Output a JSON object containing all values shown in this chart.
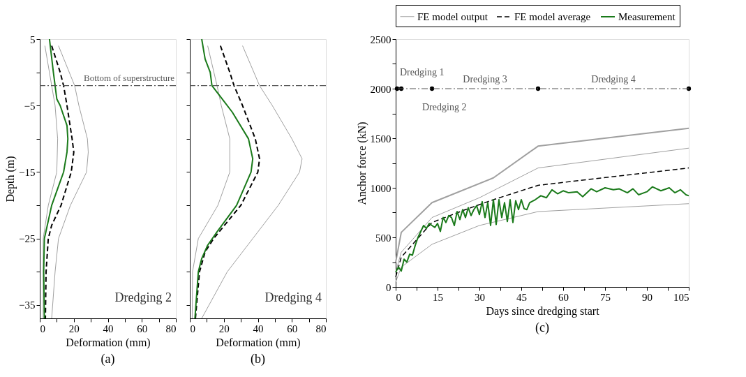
{
  "chart_data": [
    {
      "type": "line",
      "title": "(a)",
      "xlabel": "Deformation (mm)",
      "ylabel": "Depth (m)",
      "xlim": [
        0,
        80
      ],
      "ylim": [
        -37,
        5
      ],
      "xticks": [
        0,
        {
          "value": 10,
          "label": null
        },
        20,
        {
          "value": 30,
          "label": null
        },
        40,
        {
          "value": 50,
          "label": null
        },
        60,
        {
          "value": 70,
          "label": null
        },
        80
      ],
      "yticks": [
        -35,
        {
          "value": -30,
          "label": null
        },
        -25,
        {
          "value": -20,
          "label": null
        },
        -15,
        {
          "value": -10,
          "label": null
        },
        -5,
        {
          "value": 0,
          "label": null
        },
        5
      ],
      "grid": false,
      "legend": false,
      "marker": "none",
      "series": [
        {
          "color": "#a0a0a0",
          "x": [
            3,
            7,
            9,
            10.5,
            10,
            5,
            2,
            2
          ],
          "values": [
            4,
            -2,
            -5,
            -10,
            -15,
            -20,
            -25,
            -37
          ]
        },
        {
          "color": "#a0a0a0",
          "x": [
            11,
            20.5,
            23,
            28,
            28.5,
            27.5,
            18,
            11,
            9,
            7
          ],
          "values": [
            4,
            -2,
            -5,
            -10,
            -12,
            -15,
            -20,
            -25,
            -30,
            -37
          ]
        },
        {
          "color": "#000000",
          "line_style": "dashed",
          "x": [
            7,
            12,
            14,
            16,
            19,
            20,
            18.5,
            12.5,
            7,
            5,
            3.7,
            3.3
          ],
          "values": [
            4,
            0,
            -2,
            -5,
            -10,
            -12,
            -15,
            -20,
            -23,
            -25,
            -30,
            -37
          ]
        },
        {
          "color": "#1a7a1a",
          "x": [
            5.7,
            8,
            9,
            10,
            12,
            16,
            16.5,
            16,
            14,
            7,
            2.7,
            2.3,
            2.7
          ],
          "values": [
            5,
            0,
            -2,
            -4,
            -5,
            -8,
            -10,
            -12,
            -15,
            -20,
            -25,
            -30,
            -37
          ]
        }
      ],
      "ref_lines": [
        {
          "axis": "y",
          "value": -2,
          "label": "Bottom of superstructure",
          "color": "#555555",
          "line_style": "dashdot"
        }
      ],
      "annotations": [
        "Dredging 2"
      ]
    },
    {
      "type": "line",
      "title": "(b)",
      "xlabel": "Deformation (mm)",
      "xlim": [
        0,
        80
      ],
      "ylim": [
        -37,
        5
      ],
      "tick_labels": "x",
      "xticks": [
        0,
        {
          "value": 10,
          "label": null
        },
        20,
        {
          "value": 30,
          "label": null
        },
        40,
        {
          "value": 50,
          "label": null
        },
        60,
        {
          "value": 70,
          "label": null
        },
        80
      ],
      "yticks": [
        -35,
        {
          "value": -30,
          "label": null
        },
        -25,
        {
          "value": -20,
          "label": null
        },
        -15,
        {
          "value": -10,
          "label": null
        },
        -5,
        {
          "value": 0,
          "label": null
        },
        5
      ],
      "grid": false,
      "legend": false,
      "marker": "none",
      "series": [
        {
          "color": "#a0a0a0",
          "x": [
            10.5,
            16,
            18.5,
            23.5,
            23.5,
            16.5,
            5,
            1.6,
            1.4
          ],
          "values": [
            4,
            -2,
            -5,
            -10,
            -15,
            -20,
            -25,
            -30,
            -37
          ]
        },
        {
          "color": "#a0a0a0",
          "x": [
            31,
            41,
            48.5,
            60,
            66,
            64.5,
            52,
            37,
            22,
            7
          ],
          "values": [
            4,
            -2,
            -5,
            -10,
            -13,
            -15,
            -20,
            -25,
            -30,
            -37
          ]
        },
        {
          "color": "#000000",
          "line_style": "dashed",
          "x": [
            18,
            23.5,
            26,
            31,
            38.5,
            41,
            40,
            30,
            14,
            9,
            5.7,
            3.3
          ],
          "values": [
            4,
            0,
            -2,
            -5,
            -10,
            -13,
            -15,
            -20,
            -25,
            -27,
            -30,
            -37
          ]
        },
        {
          "color": "#1a7a1a",
          "x": [
            7,
            9,
            12,
            13,
            19,
            25,
            34.5,
            37,
            36,
            27.5,
            16,
            10.5,
            7,
            5,
            3
          ],
          "values": [
            5,
            2,
            0,
            -2,
            -4,
            -6,
            -10,
            -13,
            -15,
            -20,
            -24,
            -26,
            -28,
            -30,
            -37
          ]
        }
      ],
      "ref_lines": [
        {
          "axis": "y",
          "value": -2,
          "label": null,
          "color": "#555555",
          "line_style": "dashdot"
        }
      ],
      "annotations": [
        "Dredging 4"
      ]
    },
    {
      "type": "line",
      "title": "(c)",
      "xlabel": "Days since dredging start",
      "ylabel": "Anchor force (kN)",
      "xlim": [
        0,
        105
      ],
      "ylim": [
        0,
        2500
      ],
      "xticks": [
        0,
        {
          "value": 7.5,
          "label": null
        },
        15,
        {
          "value": 22.5,
          "label": null
        },
        30,
        {
          "value": 37.5,
          "label": null
        },
        45,
        {
          "value": 52.5,
          "label": null
        },
        60,
        {
          "value": 67.5,
          "label": null
        },
        75,
        {
          "value": 82.5,
          "label": null
        },
        90,
        {
          "value": 97.5,
          "label": null
        },
        105
      ],
      "yticks": [
        0,
        {
          "value": 250,
          "label": null
        },
        500,
        {
          "value": 750,
          "label": null
        },
        1000,
        {
          "value": 1250,
          "label": null
        },
        1500,
        {
          "value": 1750,
          "label": null
        },
        2000,
        {
          "value": 2250,
          "label": null
        },
        2500
      ],
      "grid": false,
      "legend": "top",
      "marker": "none",
      "series": [
        {
          "name": "FE model output",
          "color": "#a0a0a0",
          "x": [
            0,
            2,
            13,
            30,
            51,
            105
          ],
          "values": [
            50,
            200,
            430,
            620,
            760,
            840
          ]
        },
        {
          "color": "#a0a0a0",
          "x": [
            0,
            2,
            13,
            30,
            51,
            105
          ],
          "values": [
            150,
            350,
            700,
            900,
            1200,
            1400
          ]
        },
        {
          "color": "#a0a0a0",
          "x": [
            0,
            2,
            13,
            35,
            51,
            105
          ],
          "values": [
            250,
            550,
            850,
            1100,
            1420,
            1600
          ]
        },
        {
          "name": "FE model average",
          "color": "#000000",
          "line_style": "dashed",
          "x": [
            0,
            2,
            13,
            25,
            35,
            51,
            105
          ],
          "values": [
            100,
            300,
            650,
            780,
            880,
            1025,
            1200
          ]
        },
        {
          "name": "Measurement",
          "color": "#1a7a1a",
          "x": [
            0,
            1,
            2,
            3,
            4,
            5,
            6,
            7,
            8,
            9,
            10,
            11,
            12,
            13,
            14,
            15,
            16,
            17,
            18,
            19,
            20,
            21,
            22,
            23,
            24,
            25,
            26,
            27,
            28,
            29,
            30,
            31,
            32,
            33,
            34,
            35,
            36,
            37,
            38,
            39,
            40,
            41,
            42,
            43,
            44,
            45,
            46,
            47,
            48,
            50,
            52,
            54,
            56,
            58,
            60,
            62,
            65,
            67,
            70,
            72,
            75,
            78,
            80,
            83,
            85,
            87,
            90,
            92,
            95,
            98,
            100,
            102,
            104,
            105
          ],
          "values": [
            150,
            200,
            160,
            280,
            250,
            330,
            320,
            420,
            500,
            560,
            620,
            590,
            640,
            620,
            600,
            640,
            560,
            700,
            650,
            720,
            700,
            620,
            760,
            680,
            780,
            700,
            800,
            720,
            780,
            820,
            730,
            860,
            700,
            850,
            620,
            880,
            630,
            880,
            700,
            850,
            660,
            880,
            650,
            870,
            780,
            880,
            790,
            780,
            850,
            880,
            920,
            900,
            980,
            940,
            970,
            950,
            960,
            910,
            990,
            960,
            1000,
            980,
            990,
            950,
            990,
            930,
            960,
            1010,
            970,
            1000,
            950,
            980,
            930,
            920
          ]
        },
        {
          "type": "scatter",
          "marker": "circle",
          "color": "#000000",
          "x": [
            0.5,
            2,
            13,
            51,
            105
          ],
          "values": [
            2000,
            2000,
            2000,
            2000,
            2000
          ]
        }
      ],
      "ref_lines": [
        {
          "axis": "y",
          "value": 2000,
          "label": null,
          "color": "#555555",
          "line_style": "dashdot"
        }
      ],
      "annotations": [
        {
          "text": "Dredging 1",
          "x": 0.5,
          "y": 2000
        },
        {
          "text": "Dredging 2",
          "x": 11,
          "y": 2000
        },
        {
          "text": "Dredging 3",
          "x": 32,
          "y": 2000
        },
        {
          "text": "Dredging 4",
          "x": 78,
          "y": 2000
        }
      ]
    }
  ]
}
